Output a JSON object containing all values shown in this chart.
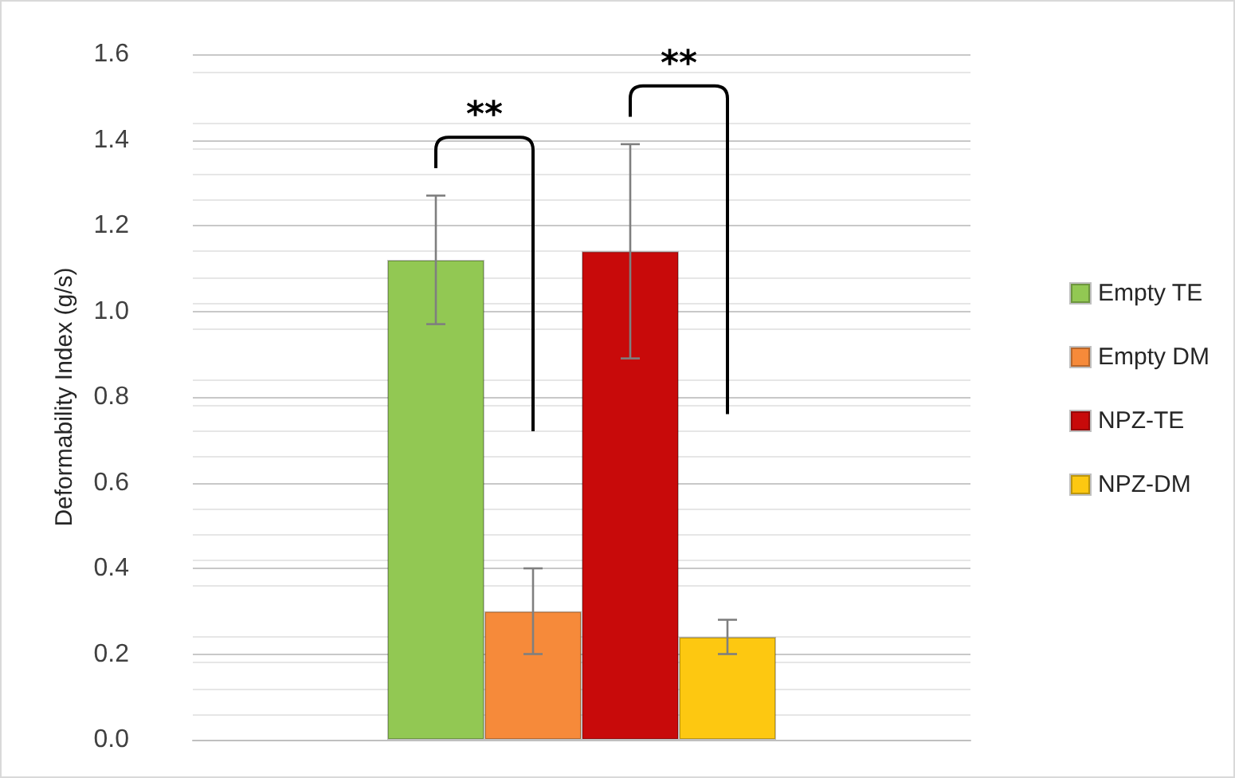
{
  "chart_data": {
    "type": "bar",
    "ylabel": "Deformability Index (g/s)",
    "categories": [
      null
    ],
    "series": [
      {
        "name": "Empty TE",
        "color": "#92c853",
        "values": [
          1.12
        ],
        "errors": [
          0.15
        ]
      },
      {
        "name": "Empty DM",
        "color": "#f68a3a",
        "values": [
          0.3
        ],
        "errors": [
          0.1
        ]
      },
      {
        "name": "NPZ-TE",
        "color": "#c80a0a",
        "values": [
          1.14
        ],
        "errors": [
          0.25
        ]
      },
      {
        "name": "NPZ-DM",
        "color": "#fdc811",
        "values": [
          0.24
        ],
        "errors": [
          0.04
        ]
      }
    ],
    "ylim": [
      0,
      1.6
    ],
    "yticks": [
      {
        "value": 0,
        "label": "0.0"
      },
      0.2,
      0.4,
      0.6,
      0.8,
      {
        "value": 1,
        "label": "1.0"
      },
      1.2,
      1.4,
      1.6
    ],
    "annotations": [
      "**",
      "**"
    ],
    "grid": "y",
    "legend": "right"
  }
}
